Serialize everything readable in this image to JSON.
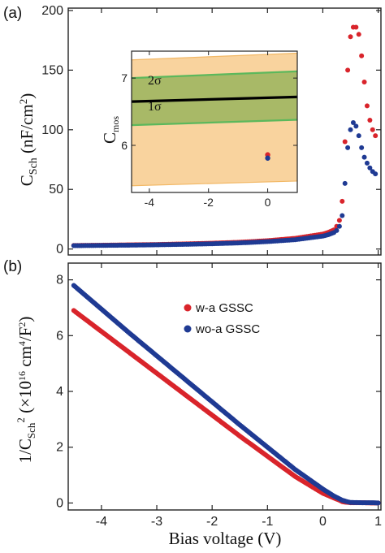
{
  "chart_data": [
    {
      "panel": "(a)",
      "type": "scatter",
      "ylabel": "C_Sch (nF/cm²)",
      "ylabel_main": "C",
      "ylabel_sub": "Sch",
      "ylabel_unit": " (nF/cm",
      "ylabel_sup": "2",
      "ylabel_close": ")",
      "xlim": [
        -4.6,
        1.05
      ],
      "ylim": [
        -5,
        202
      ],
      "x_ticks": [
        -4,
        -3,
        -2,
        -1,
        0,
        1
      ],
      "y_ticks": [
        0,
        50,
        100,
        150,
        200
      ],
      "y_tick_labels": [
        "0",
        "50",
        "100",
        "150",
        "200"
      ],
      "series": [
        {
          "legend": "w-a GSSC",
          "color": "#d9242b",
          "x": [
            -4.5,
            -4.0,
            -3.5,
            -3.0,
            -2.5,
            -2.0,
            -1.5,
            -1.0,
            -0.5,
            0.0,
            0.1,
            0.2,
            0.25,
            0.3,
            0.35,
            0.4,
            0.45,
            0.5,
            0.55,
            0.6,
            0.65,
            0.7,
            0.75,
            0.8,
            0.85,
            0.9,
            0.95
          ],
          "y": [
            3.0,
            3.2,
            3.5,
            3.8,
            4.3,
            4.9,
            5.7,
            7.0,
            9.0,
            12.5,
            14.0,
            16.0,
            19.0,
            24.0,
            40.0,
            90.0,
            150.0,
            178.0,
            186.0,
            186.0,
            180.0,
            162.0,
            140.0,
            120.0,
            108.0,
            100.0,
            95.0
          ]
        },
        {
          "legend": "wo-a GSSC",
          "color": "#1f3a93",
          "x": [
            -4.5,
            -4.0,
            -3.5,
            -3.0,
            -2.5,
            -2.0,
            -1.5,
            -1.0,
            -0.5,
            0.0,
            0.1,
            0.2,
            0.25,
            0.3,
            0.35,
            0.4,
            0.45,
            0.5,
            0.55,
            0.6,
            0.65,
            0.7,
            0.75,
            0.8,
            0.85,
            0.9,
            0.95
          ],
          "y": [
            2.8,
            3.0,
            3.2,
            3.5,
            3.9,
            4.4,
            5.1,
            6.2,
            7.8,
            10.8,
            12.0,
            13.8,
            15.5,
            19.0,
            28.0,
            55.0,
            85.0,
            100.0,
            106.0,
            103.0,
            95.0,
            85.0,
            77.0,
            72.0,
            68.0,
            65.0,
            63.0
          ]
        }
      ]
    },
    {
      "panel": "inset",
      "type": "area",
      "ylabel": "C_mos",
      "ylabel_main": "C",
      "ylabel_sub": "mos",
      "xlim": [
        -4.6,
        1.0
      ],
      "ylim": [
        5.3,
        7.4
      ],
      "x_ticks": [
        -4,
        -2,
        0
      ],
      "y_ticks": [
        6,
        7
      ],
      "band_2s_label": "2σ",
      "band_1s_label": "1σ",
      "mean_line": {
        "x": [
          -4.6,
          1.0
        ],
        "y": [
          6.65,
          6.72
        ]
      },
      "band_1s": {
        "upper": [
          7.0,
          7.1
        ],
        "lower": [
          6.3,
          6.38
        ]
      },
      "band_2s": {
        "upper": [
          7.27,
          7.37
        ],
        "lower": [
          5.4,
          5.47
        ]
      },
      "points": [
        {
          "x": 0,
          "y": 5.86,
          "color": "#d9242b"
        },
        {
          "x": 0,
          "y": 5.81,
          "color": "#1f3a93"
        }
      ],
      "colors": {
        "band_2s": "#f9d39e",
        "band_1s": "#a8b967",
        "edge": "#5cb85c",
        "mean": "#000000"
      }
    },
    {
      "panel": "(b)",
      "type": "scatter",
      "xlabel": "Bias voltage (V)",
      "ylabel": "1/C_Sch^2 (×10^16 cm^4/F^2)",
      "ylabel_pre": "1/C",
      "ylabel_sub": "Sch",
      "ylabel_sup": "2",
      "ylabel_unit": "  (×10",
      "ylabel_sup2": "16",
      "ylabel_unit2": " cm",
      "ylabel_sup3": "4",
      "ylabel_unit3": "/F",
      "ylabel_sup4": "2",
      "ylabel_close": ")",
      "xlim": [
        -4.6,
        1.05
      ],
      "ylim": [
        -0.25,
        8.6
      ],
      "x_ticks": [
        -4,
        -3,
        -2,
        -1,
        0,
        1
      ],
      "x_tick_labels": [
        "-4",
        "-3",
        "-2",
        "-1",
        "0",
        "1"
      ],
      "y_ticks": [
        0,
        2,
        4,
        6,
        8
      ],
      "y_tick_labels": [
        "0",
        "2",
        "4",
        "6",
        "8"
      ],
      "series": [
        {
          "legend": "w-a GSSC",
          "color": "#d9242b",
          "x": [
            -4.5,
            -3.5,
            -2.5,
            -1.5,
            -0.5,
            0.0,
            0.2,
            0.3,
            0.35,
            0.4,
            0.5,
            0.7,
            0.9,
            1.0
          ],
          "y": [
            6.9,
            5.4,
            3.9,
            2.4,
            0.95,
            0.35,
            0.18,
            0.1,
            0.05,
            0.03,
            0.01,
            0.01,
            0.0,
            0.0
          ]
        },
        {
          "legend": "wo-a GSSC",
          "color": "#1f3a93",
          "x": [
            -4.5,
            -3.5,
            -2.5,
            -1.5,
            -0.5,
            0.0,
            0.2,
            0.3,
            0.35,
            0.4,
            0.45,
            0.5,
            0.7,
            0.9,
            1.0
          ],
          "y": [
            7.8,
            6.1,
            4.45,
            2.8,
            1.2,
            0.5,
            0.25,
            0.15,
            0.1,
            0.07,
            0.04,
            0.02,
            0.01,
            0.01,
            0.0
          ]
        }
      ],
      "legend_placement": "top-right"
    }
  ]
}
